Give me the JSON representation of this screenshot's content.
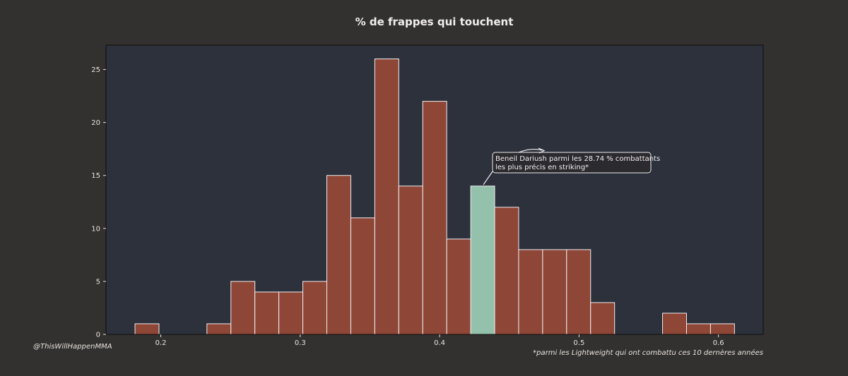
{
  "chart_data": {
    "type": "bar",
    "title": "% de frappes qui touchent",
    "xlabel": "",
    "ylabel": "",
    "xlim": [
      0.1607,
      0.6321
    ],
    "ylim": [
      0,
      27.3
    ],
    "xticks": [
      0.2,
      0.3,
      0.4,
      0.5,
      0.6
    ],
    "yticks": [
      0,
      5,
      10,
      15,
      20,
      25
    ],
    "bin_edges": [
      0.1815,
      0.1987,
      0.2159,
      0.2331,
      0.2503,
      0.2675,
      0.2847,
      0.3019,
      0.3191,
      0.3363,
      0.3535,
      0.3707,
      0.3879,
      0.4051,
      0.4223,
      0.4395,
      0.4567,
      0.4739,
      0.4911,
      0.5083,
      0.5255,
      0.5427,
      0.5599,
      0.5771,
      0.5943,
      0.6115
    ],
    "values": [
      1,
      0,
      0,
      1,
      5,
      4,
      4,
      5,
      15,
      11,
      26,
      14,
      22,
      9,
      14,
      12,
      8,
      8,
      8,
      3,
      0,
      0,
      2,
      1,
      1
    ],
    "highlight_index": 14,
    "bar_color": "#8e4637",
    "highlight_color": "#94c1ac",
    "edge_color": "#f2eeee",
    "plot_background": "#2c313c",
    "page_background": "#33312f",
    "grid": false,
    "annotation": {
      "lines": [
        "Beneil Dariush parmi les 28.74 % combattants",
        "les plus précis en striking*"
      ],
      "target_bin": 14
    }
  },
  "credit": "@ThisWillHappenMMA",
  "footnote": "*parmi les Lightweight qui ont combattu ces 10 dernères années"
}
